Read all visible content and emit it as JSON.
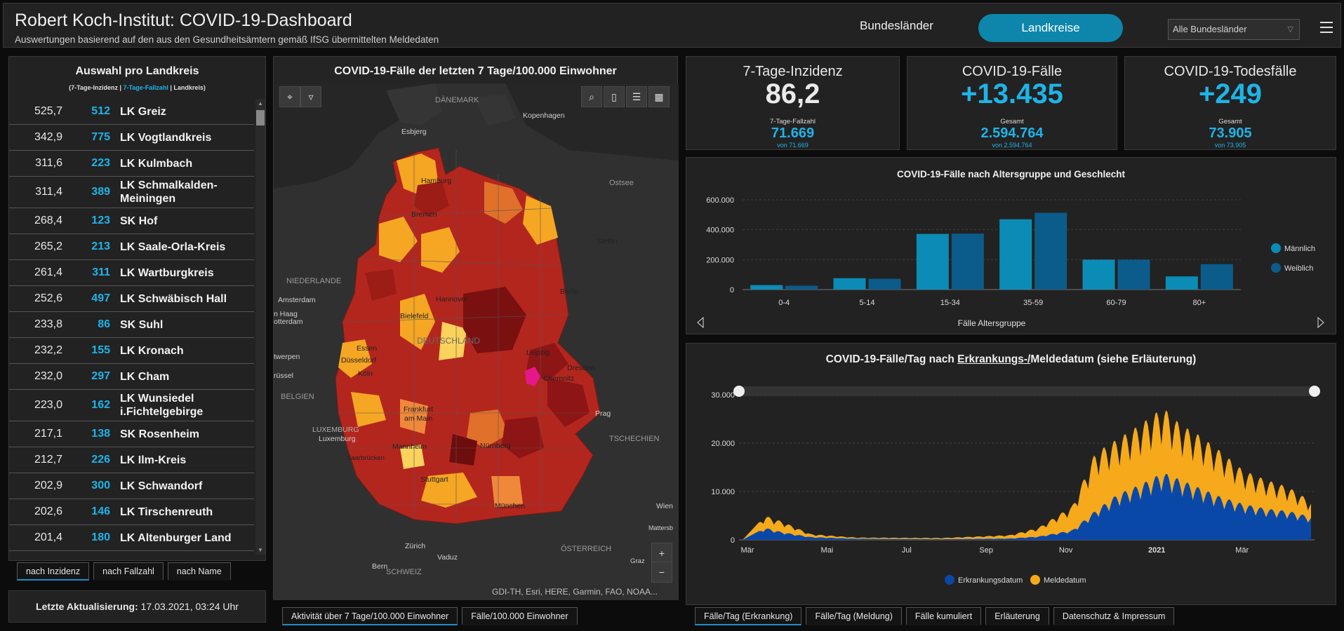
{
  "header": {
    "title": "Robert Koch-Institut: COVID-19-Dashboard",
    "subtitle": "Auswertungen basierend auf den aus den Gesundheitsämtern gemäß IfSG übermittelten Meldedaten",
    "btn_bundeslaender": "Bundesländer",
    "btn_landkreise": "Landkreise",
    "select_value": "Alle Bundesländer"
  },
  "list": {
    "title": "Auswahl pro Landkreis",
    "legend_a": "(7-Tage-Inzidenz | ",
    "legend_b": "7-Tage-Fallzahl",
    "legend_c": " | Landkreis)",
    "rows": [
      {
        "inz": "525,7",
        "fz": "512",
        "name": "LK Greiz"
      },
      {
        "inz": "342,9",
        "fz": "775",
        "name": "LK Vogtlandkreis"
      },
      {
        "inz": "311,6",
        "fz": "223",
        "name": "LK Kulmbach"
      },
      {
        "inz": "311,4",
        "fz": "389",
        "name": "LK Schmalkalden-Meiningen"
      },
      {
        "inz": "268,4",
        "fz": "123",
        "name": "SK Hof"
      },
      {
        "inz": "265,2",
        "fz": "213",
        "name": "LK Saale-Orla-Kreis"
      },
      {
        "inz": "261,4",
        "fz": "311",
        "name": "LK Wartburgkreis"
      },
      {
        "inz": "252,6",
        "fz": "497",
        "name": "LK Schwäbisch Hall"
      },
      {
        "inz": "233,8",
        "fz": "86",
        "name": "SK Suhl"
      },
      {
        "inz": "232,2",
        "fz": "155",
        "name": "LK Kronach"
      },
      {
        "inz": "232,0",
        "fz": "297",
        "name": "LK Cham"
      },
      {
        "inz": "223,0",
        "fz": "162",
        "name": "LK Wunsiedel i.Fichtelgebirge"
      },
      {
        "inz": "217,1",
        "fz": "138",
        "name": "SK Rosenheim"
      },
      {
        "inz": "212,7",
        "fz": "226",
        "name": "LK Ilm-Kreis"
      },
      {
        "inz": "202,9",
        "fz": "300",
        "name": "LK Schwandorf"
      },
      {
        "inz": "202,6",
        "fz": "146",
        "name": "LK Tirschenreuth"
      },
      {
        "inz": "201,4",
        "fz": "180",
        "name": "LK Altenburger Land"
      }
    ],
    "tabs": [
      "nach Inzidenz",
      "nach Fallzahl",
      "nach Name"
    ]
  },
  "update": {
    "label": "Letzte Aktualisierung:",
    "value": " 17.03.2021, 03:24 Uhr"
  },
  "map": {
    "title": "COVID-19-Fälle der letzten 7 Tage/100.000 Einwohner",
    "attribution": "GDI-TH, Esri, HERE, Garmin, FAO, NOAA...",
    "labels": {
      "daenemark": "DÄNEMARK",
      "kopenhagen": "Kopenhagen",
      "esbjerg": "Esbjerg",
      "ostsee": "Ostsee",
      "niederlande": "NIEDERLANDE",
      "amsterdam": "Amsterdam",
      "den_haag": "n Haag",
      "rotterdam": "otterdam",
      "twerpen": "twerpen",
      "bruessel": "rüssel",
      "belgien": "BELGIEN",
      "luxemburg_c": "LUXEMBURG",
      "luxemburg": "Luxemburg",
      "hamburg": "Hamburg",
      "bremen": "Bremen",
      "hannover": "Hannover",
      "berlin": "Berlin",
      "stettin": "Stettin",
      "bielefeld": "Bielefeld",
      "essen": "Essen",
      "duesseldorf": "Düsseldorf",
      "koeln": "Köln",
      "deutschland": "DEUTSCHLAND",
      "leipzig": "Leipzig",
      "dresden": "Dresden",
      "chemnitz": "Chemnitz",
      "frankfurt": "Frankfurt",
      "am_main": "am Main",
      "prag": "Prag",
      "tschechien": "TSCHECHIEN",
      "mannheim": "Mannheim",
      "saarbruecken": "Saarbrücken",
      "nuernberg": "Nürnberg",
      "stuttgart": "Stuttgart",
      "muenchen": "München",
      "wien": "Wien",
      "mattersburg": "Mattersb",
      "zuerich": "Zürich",
      "vaduz": "Vaduz",
      "oesterreich": "ÖSTERREICH",
      "bern": "Bern",
      "schweiz": "SCHWEIZ",
      "graz": "Graz"
    },
    "tabs": [
      "Aktivität über 7 Tage/100.000 Einwohner",
      "Fälle/100.000 Einwohner"
    ]
  },
  "kpi": {
    "inzidenz": {
      "title": "7-Tage-Inzidenz",
      "value": "86,2",
      "sub_label": "7-Tage-Fallzahl",
      "sub_value": "71.669",
      "sub_small": "von 71.669"
    },
    "faelle": {
      "title": "COVID-19-Fälle",
      "value": "+13.435",
      "sub_label": "Gesamt",
      "sub_value": "2.594.764",
      "sub_small": "von 2.594.764"
    },
    "tode": {
      "title": "COVID-19-Todesfälle",
      "value": "+249",
      "sub_label": "Gesamt",
      "sub_value": "73.905",
      "sub_small": "von 73.905"
    }
  },
  "colors": {
    "accent": "#1eb4e8",
    "male": "#0b8cb6",
    "female": "#0b5c8a",
    "erkrankung": "#0a48a8",
    "meldung": "#f5a91b"
  },
  "chart_data": [
    {
      "type": "bar",
      "title": "COVID-19-Fälle nach Altersgruppe und Geschlecht",
      "xlabel": "Fälle Altersgruppe",
      "categories": [
        "0-4",
        "5-14",
        "15-34",
        "35-59",
        "60-79",
        "80+"
      ],
      "series": [
        {
          "name": "Männlich",
          "values": [
            30000,
            76000,
            372000,
            470000,
            200000,
            88000
          ]
        },
        {
          "name": "Weiblich",
          "values": [
            26000,
            72000,
            374000,
            513000,
            200000,
            170000
          ]
        }
      ],
      "ylim": [
        0,
        600000
      ],
      "yticks": [
        "0",
        "200.000",
        "400.000",
        "600.000"
      ],
      "legend": "right"
    },
    {
      "type": "area",
      "title_a": "COVID-19-Fälle/Tag nach ",
      "title_b": "Erkrankungs-/",
      "title_c": "Meldedatum (siehe Erläuterung)",
      "ylim": [
        0,
        30000
      ],
      "yticks": [
        "0",
        "10.000",
        "20.000",
        "30.000"
      ],
      "xticks": [
        "Mär",
        "Mai",
        "Jul",
        "Sep",
        "Nov",
        "2021",
        "Mär"
      ],
      "series": [
        {
          "name": "Erkrankungsdatum",
          "envelope": [
            [
              0,
              0
            ],
            [
              0.04,
              2500
            ],
            [
              0.07,
              1600
            ],
            [
              0.12,
              600
            ],
            [
              0.2,
              250
            ],
            [
              0.35,
              150
            ],
            [
              0.47,
              300
            ],
            [
              0.52,
              700
            ],
            [
              0.58,
              2000
            ],
            [
              0.62,
              6000
            ],
            [
              0.66,
              9500
            ],
            [
              0.7,
              11500
            ],
            [
              0.74,
              14000
            ],
            [
              0.77,
              12500
            ],
            [
              0.8,
              11000
            ],
            [
              0.84,
              9000
            ],
            [
              0.88,
              7500
            ],
            [
              0.92,
              6500
            ],
            [
              0.96,
              6000
            ],
            [
              1,
              4800
            ]
          ]
        },
        {
          "name": "Meldedatum",
          "envelope": [
            [
              0,
              0
            ],
            [
              0.04,
              5000
            ],
            [
              0.07,
              3800
            ],
            [
              0.12,
              1200
            ],
            [
              0.2,
              500
            ],
            [
              0.35,
              400
            ],
            [
              0.47,
              1000
            ],
            [
              0.52,
              2500
            ],
            [
              0.58,
              7000
            ],
            [
              0.62,
              18000
            ],
            [
              0.66,
              21000
            ],
            [
              0.7,
              24000
            ],
            [
              0.74,
              27500
            ],
            [
              0.77,
              24000
            ],
            [
              0.8,
              22000
            ],
            [
              0.84,
              18500
            ],
            [
              0.88,
              14500
            ],
            [
              0.92,
              12500
            ],
            [
              0.96,
              11000
            ],
            [
              1,
              8000
            ]
          ]
        }
      ],
      "legend": "bottom"
    }
  ],
  "bottom_tabs": [
    "Fälle/Tag (Erkrankung)",
    "Fälle/Tag (Meldung)",
    "Fälle kumuliert",
    "Erläuterung",
    "Datenschutz & Impressum"
  ]
}
